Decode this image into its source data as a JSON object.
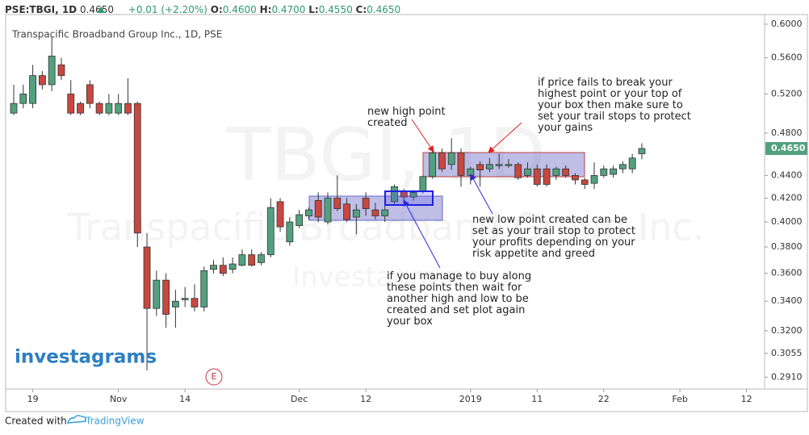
{
  "header": {
    "symbol": "PSE:TBGI, 1D",
    "last": "0.4650",
    "change": "+0.01 (+2.20%)",
    "ohlc": [
      {
        "label": "O:",
        "value": "0.4600"
      },
      {
        "label": "H:",
        "value": "0.4700"
      },
      {
        "label": "L:",
        "value": "0.4550"
      },
      {
        "label": "C:",
        "value": "0.4650"
      }
    ]
  },
  "chart_data": {
    "type": "candlestick",
    "title": "Transpacific Broadband Group Inc., 1D, PSE",
    "watermark": [
      "TBGI, 1D",
      "Transpacific Broadband Group Inc.",
      "Investagrams"
    ],
    "logo": "investagrams",
    "event_marker": "E",
    "last_price_label": "0.4650",
    "up_color": "#53a07f",
    "down_color": "#c8473f",
    "log_scale": true,
    "open": [
      0.5,
      0.51,
      0.51,
      0.54,
      0.53,
      0.552,
      0.52,
      0.51,
      0.53,
      0.51,
      0.5,
      0.5,
      0.51,
      0.51,
      0.38,
      0.335,
      0.355,
      0.336,
      0.341,
      0.342,
      0.336,
      0.363,
      0.366,
      0.363,
      0.366,
      0.374,
      0.368,
      0.374,
      0.417,
      0.384,
      0.397,
      0.405,
      0.418,
      0.4,
      0.42,
      0.415,
      0.404,
      0.42,
      0.41,
      0.405,
      0.417,
      0.426,
      0.421,
      0.426,
      0.439,
      0.461,
      0.45,
      0.461,
      0.44,
      0.45,
      0.446,
      0.449,
      0.449,
      0.45,
      0.44,
      0.446,
      0.446,
      0.44,
      0.446,
      0.44,
      0.436,
      0.433,
      0.44,
      0.441,
      0.446,
      0.446,
      0.46
    ],
    "high": [
      0.53,
      0.53,
      0.552,
      0.545,
      0.585,
      0.56,
      0.535,
      0.512,
      0.535,
      0.512,
      0.52,
      0.52,
      0.537,
      0.512,
      0.391,
      0.362,
      0.36,
      0.348,
      0.35,
      0.352,
      0.365,
      0.37,
      0.372,
      0.372,
      0.378,
      0.378,
      0.376,
      0.42,
      0.42,
      0.404,
      0.41,
      0.412,
      0.425,
      0.425,
      0.44,
      0.42,
      0.415,
      0.425,
      0.416,
      0.415,
      0.432,
      0.428,
      0.427,
      0.44,
      0.467,
      0.465,
      0.475,
      0.465,
      0.448,
      0.453,
      0.456,
      0.46,
      0.455,
      0.452,
      0.452,
      0.45,
      0.45,
      0.448,
      0.449,
      0.442,
      0.438,
      0.452,
      0.449,
      0.449,
      0.453,
      0.46,
      0.47
    ],
    "low": [
      0.498,
      0.505,
      0.505,
      0.525,
      0.523,
      0.535,
      0.498,
      0.498,
      0.505,
      0.498,
      0.498,
      0.498,
      0.498,
      0.38,
      0.295,
      0.33,
      0.322,
      0.322,
      0.336,
      0.333,
      0.333,
      0.36,
      0.358,
      0.36,
      0.365,
      0.365,
      0.366,
      0.372,
      0.392,
      0.381,
      0.395,
      0.402,
      0.4,
      0.398,
      0.409,
      0.4,
      0.39,
      0.405,
      0.402,
      0.4,
      0.415,
      0.418,
      0.418,
      0.424,
      0.437,
      0.443,
      0.445,
      0.43,
      0.432,
      0.43,
      0.443,
      0.446,
      0.447,
      0.436,
      0.438,
      0.43,
      0.43,
      0.436,
      0.438,
      0.432,
      0.428,
      0.428,
      0.438,
      0.438,
      0.442,
      0.442,
      0.455
    ],
    "close": [
      0.51,
      0.52,
      0.54,
      0.53,
      0.562,
      0.54,
      0.5,
      0.5,
      0.51,
      0.5,
      0.51,
      0.51,
      0.5,
      0.391,
      0.335,
      0.355,
      0.331,
      0.34,
      0.342,
      0.336,
      0.362,
      0.366,
      0.36,
      0.367,
      0.374,
      0.366,
      0.374,
      0.412,
      0.396,
      0.4,
      0.406,
      0.41,
      0.404,
      0.42,
      0.411,
      0.402,
      0.41,
      0.411,
      0.405,
      0.41,
      0.43,
      0.421,
      0.425,
      0.439,
      0.461,
      0.446,
      0.461,
      0.44,
      0.446,
      0.445,
      0.45,
      0.45,
      0.45,
      0.438,
      0.446,
      0.432,
      0.432,
      0.446,
      0.44,
      0.436,
      0.432,
      0.44,
      0.446,
      0.446,
      0.45,
      0.456,
      0.465
    ],
    "xlim": [
      -0.85,
      78.9
    ],
    "xticks": [
      {
        "value": 2,
        "label": "19"
      },
      {
        "value": 11,
        "label": "Nov"
      },
      {
        "value": 18,
        "label": "14"
      },
      {
        "value": 30,
        "label": "Dec"
      },
      {
        "value": 37,
        "label": "12"
      },
      {
        "value": 48,
        "label": "2019"
      },
      {
        "value": 55,
        "label": "11"
      },
      {
        "value": 62,
        "label": "22"
      },
      {
        "value": 70,
        "label": "Feb"
      },
      {
        "value": 77,
        "label": "12"
      }
    ],
    "ylim": [
      0.284,
      0.612
    ],
    "yticks": [
      {
        "value": 0.6,
        "label": "0.6000"
      },
      {
        "value": 0.56,
        "label": "0.5600"
      },
      {
        "value": 0.52,
        "label": "0.5200"
      },
      {
        "value": 0.48,
        "label": "0.4800"
      },
      {
        "value": 0.44,
        "label": "0.4400"
      },
      {
        "value": 0.42,
        "label": "0.4200"
      },
      {
        "value": 0.4,
        "label": "0.4000"
      },
      {
        "value": 0.38,
        "label": "0.3800"
      },
      {
        "value": 0.36,
        "label": "0.3600"
      },
      {
        "value": 0.34,
        "label": "0.3400"
      },
      {
        "value": 0.32,
        "label": "0.3200"
      },
      {
        "value": 0.3055,
        "label": "0.3055"
      },
      {
        "value": 0.291,
        "label": "0.2910"
      }
    ],
    "annotations": [
      {
        "lines": [
          "new high point",
          "created"
        ]
      },
      {
        "lines": [
          "if price fails to break your",
          "highest point or your top of",
          "your box then make sure to",
          "set your trail stops to protect",
          "your gains"
        ]
      },
      {
        "lines": [
          "new low point created can be",
          "set as your trail stop to protect",
          "your profits depending on your",
          "risk appetite and greed"
        ]
      },
      {
        "lines": [
          "if you manage to buy along",
          "these points then wait for",
          "another high and low to be",
          "created and set plot again",
          "your box"
        ]
      }
    ]
  },
  "footer": {
    "prefix": "Created with",
    "brand": "TradingView"
  }
}
